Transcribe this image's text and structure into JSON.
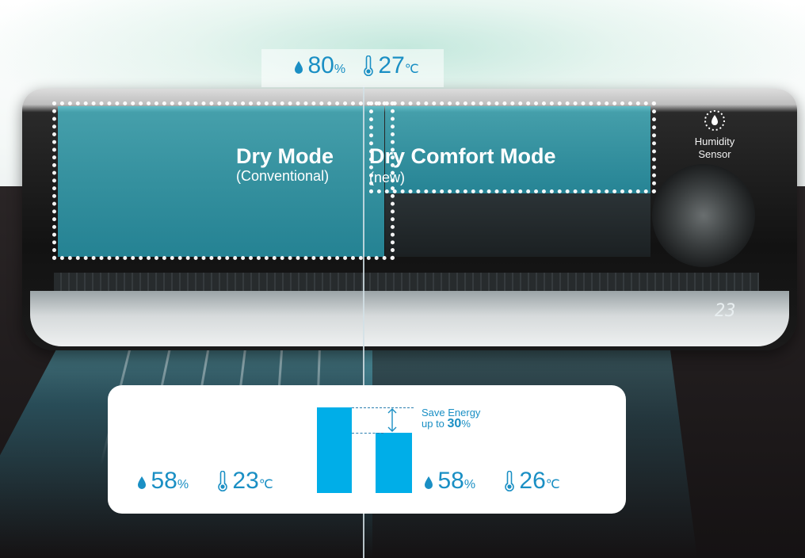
{
  "top_readout": {
    "humidity_value": "80",
    "humidity_unit": "%",
    "temperature_value": "27",
    "temperature_unit": "℃"
  },
  "modes": {
    "left": {
      "title": "Dry Mode",
      "subtitle": "(Conventional)"
    },
    "right": {
      "title": "Dry Comfort Mode",
      "subtitle": "(new)"
    }
  },
  "sensor": {
    "label_line1": "Humidity",
    "label_line2": "Sensor"
  },
  "unit_display": {
    "temperature": "23"
  },
  "comparison": {
    "left": {
      "humidity_value": "58",
      "humidity_unit": "%",
      "temperature_value": "23",
      "temperature_unit": "℃",
      "bar_level": 1.0
    },
    "right": {
      "humidity_value": "58",
      "humidity_unit": "%",
      "temperature_value": "26",
      "temperature_unit": "℃",
      "bar_level": 0.7
    },
    "save_line1": "Save Energy",
    "save_prefix": "up to ",
    "save_value": "30",
    "save_unit": "%"
  },
  "colors": {
    "accent_blue": "#00aee8",
    "text_blue": "#1a8fc4",
    "panel_white": "#ffffff"
  },
  "icons": [
    "water-drop-icon",
    "thermometer-icon",
    "up-down-arrow-icon",
    "humidity-sensor-icon"
  ]
}
